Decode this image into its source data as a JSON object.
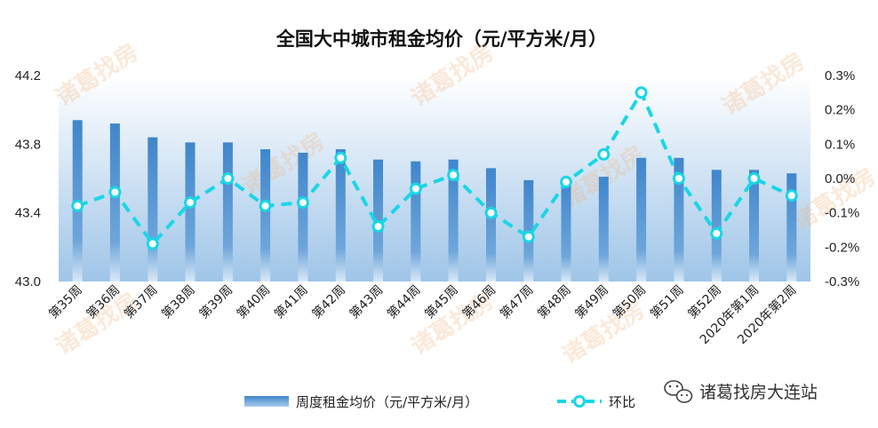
{
  "chart_data": {
    "type": "bar",
    "title": "全国大中城市租金均价（元/平方米/月）",
    "categories": [
      "第35周",
      "第36周",
      "第37周",
      "第38周",
      "第39周",
      "第40周",
      "第41周",
      "第42周",
      "第43周",
      "第44周",
      "第45周",
      "第46周",
      "第47周",
      "第48周",
      "第49周",
      "第50周",
      "第51周",
      "第52周",
      "2020年第1周",
      "2020年第2周"
    ],
    "series": [
      {
        "name": "周度租金均价（元/平方米/月）",
        "type": "bar",
        "axis": "left",
        "color": "#5b9bd5",
        "values": [
          43.94,
          43.92,
          43.84,
          43.81,
          43.81,
          43.77,
          43.75,
          43.77,
          43.71,
          43.7,
          43.71,
          43.66,
          43.59,
          43.59,
          43.61,
          43.72,
          43.72,
          43.65,
          43.65,
          43.63
        ]
      },
      {
        "name": "环比",
        "type": "line",
        "axis": "right",
        "color": "#19d6e6",
        "style": "dashed",
        "marker": "circle",
        "values": [
          -0.08,
          -0.04,
          -0.19,
          -0.07,
          0.0,
          -0.08,
          -0.07,
          0.06,
          -0.14,
          -0.03,
          0.01,
          -0.1,
          -0.17,
          -0.01,
          0.07,
          0.25,
          0.0,
          -0.16,
          0.0,
          -0.05
        ]
      }
    ],
    "y_left": {
      "min": 43.0,
      "max": 44.2,
      "ticks": [
        "43.0",
        "43.4",
        "43.8",
        "44.2"
      ]
    },
    "y_right": {
      "min": -0.3,
      "max": 0.3,
      "ticks": [
        "-0.3%",
        "-0.2%",
        "-0.1%",
        "0.0%",
        "0.1%",
        "0.2%",
        "0.3%"
      ]
    },
    "grid": false,
    "legend_position": "bottom"
  },
  "watermark": {
    "text": "诸葛找房"
  },
  "brand": {
    "icon": "wechat-icon",
    "text": "诸葛找房大连站"
  },
  "colors": {
    "plot_bg_top": "#ffffff",
    "plot_bg_bottom": "#9fc5e8",
    "bar": "#5b9bd5",
    "line": "#19d6e6"
  }
}
